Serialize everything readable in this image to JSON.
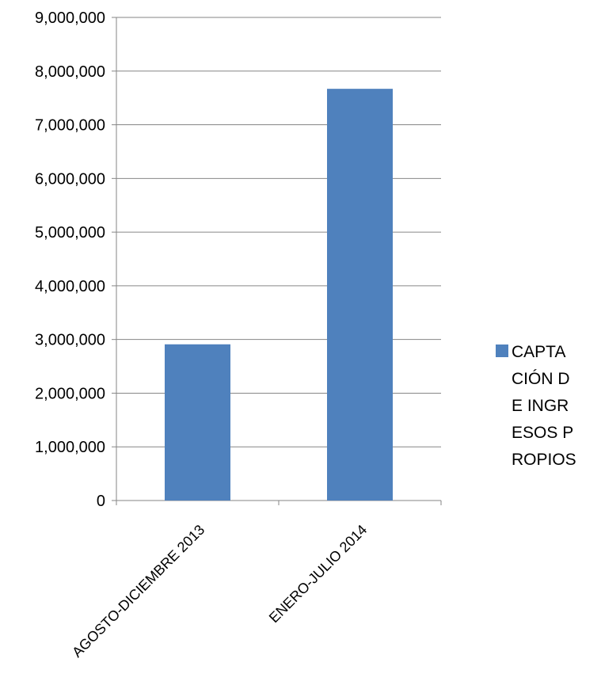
{
  "chart_data": {
    "type": "bar",
    "categories": [
      "AGOSTO-DICIEMBRE 2013",
      "ENERO-JULIO 2014"
    ],
    "series": [
      {
        "name": "CAPTACIÓN DE INGRESOS PROPIOS",
        "values": [
          2910000,
          7670000
        ],
        "color": "#4F81BD"
      }
    ],
    "y_ticks": [
      "0",
      "1,000,000",
      "2,000,000",
      "3,000,000",
      "4,000,000",
      "5,000,000",
      "6,000,000",
      "7,000,000",
      "8,000,000",
      "9,000,000"
    ],
    "ylim": [
      0,
      9000000
    ],
    "grid": true,
    "legend_position": "right",
    "title": "",
    "xlabel": "",
    "ylabel": ""
  }
}
